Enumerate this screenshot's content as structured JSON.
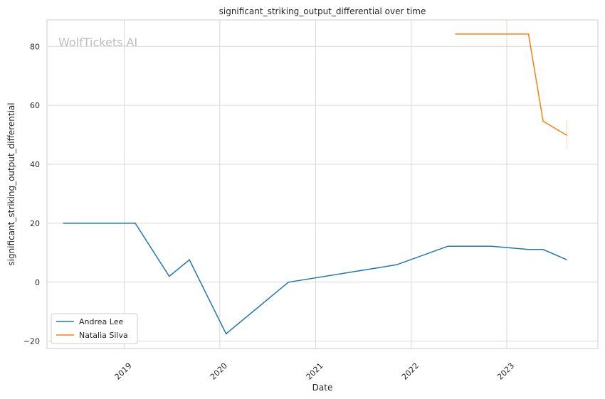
{
  "chart_data": {
    "type": "line",
    "title": "significant_striking_output_differential over time",
    "xlabel": "Date",
    "ylabel": "significant_striking_output_differential",
    "watermark": "WolfTickets.AI",
    "x_ticks": [
      "2019",
      "2020",
      "2021",
      "2022",
      "2023"
    ],
    "y_ticks": [
      -20,
      0,
      20,
      40,
      60,
      80
    ],
    "xlim": [
      "2018-03-12",
      "2023-12-15"
    ],
    "ylim": [
      -22.5,
      89
    ],
    "grid": true,
    "legend_position": "lower-left",
    "series": [
      {
        "name": "Andrea Lee",
        "color": "#1f77b4",
        "x": [
          "2018-05-12",
          "2019-02-12",
          "2019-06-22",
          "2019-09-07",
          "2020-01-25",
          "2020-09-19",
          "2021-11-06",
          "2022-05-21",
          "2022-11-05",
          "2023-03-25",
          "2023-05-20",
          "2023-08-19"
        ],
        "y": [
          20,
          20,
          2,
          7.6,
          -17.5,
          0,
          5.9,
          12.2,
          12.2,
          11.1,
          11.1,
          7.6
        ]
      },
      {
        "name": "Natalia Silva",
        "color": "#ff7f0e",
        "x": [
          "2022-06-18",
          "2023-03-25",
          "2023-05-20",
          "2023-08-19"
        ],
        "y": [
          84.2,
          84.2,
          54.6,
          49.8
        ],
        "error_bar": {
          "x": "2023-08-19",
          "low": 45.2,
          "high": 55.1
        }
      }
    ]
  }
}
